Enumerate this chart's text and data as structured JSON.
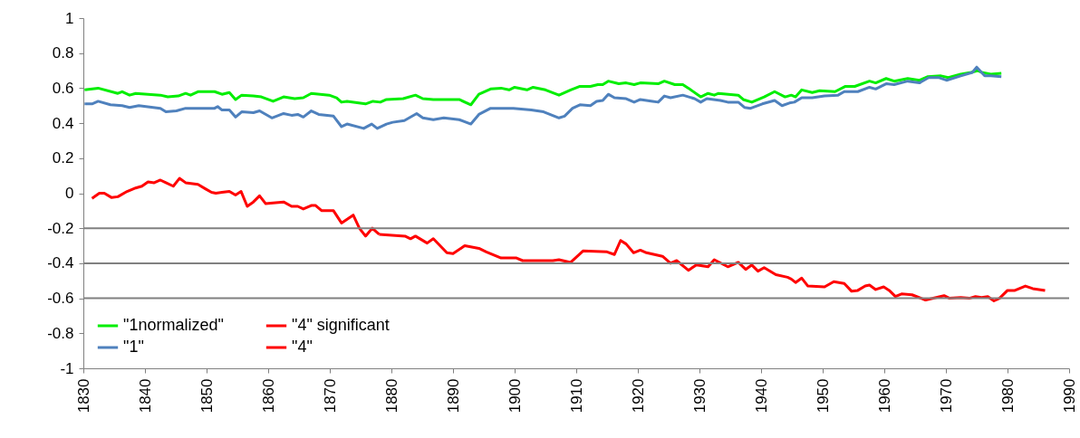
{
  "chart_data": {
    "type": "line",
    "xlim": [
      1830,
      1990
    ],
    "xticks": [
      1830,
      1840,
      1850,
      1860,
      1870,
      1880,
      1890,
      1900,
      1910,
      1920,
      1930,
      1940,
      1950,
      1960,
      1970,
      1980,
      1990
    ],
    "ylim": [
      -1,
      1
    ],
    "yticks": [
      -1,
      -0.8,
      -0.6,
      -0.4,
      -0.2,
      0,
      0.2,
      0.4,
      0.6,
      0.8,
      1
    ],
    "legend": "bottom left",
    "line_style": "solid",
    "marker": "none",
    "ref_lines": [
      {
        "axis": "y",
        "value": -0.2,
        "color": "#808080"
      },
      {
        "axis": "y",
        "value": -0.4,
        "color": "#808080"
      },
      {
        "axis": "y",
        "value": -0.6,
        "color": "#808080"
      }
    ],
    "series": [
      {
        "name": "\"1normalized\"",
        "color": "#00ee00",
        "x": [
          1830.2,
          1832.4,
          1835.6,
          1836.3,
          1837.5,
          1838.5,
          1842.5,
          1843.7,
          1845.4,
          1846.6,
          1847.4,
          1848.6,
          1851.3,
          1852.5,
          1853.7,
          1854.7,
          1855.7,
          1857.6,
          1858.9,
          1860.8,
          1862.5,
          1864.3,
          1865.7,
          1867,
          1869.9,
          1871.1,
          1871.9,
          1872.8,
          1875.8,
          1877,
          1878.2,
          1879.2,
          1881.9,
          1883.9,
          1885.1,
          1886.8,
          1891,
          1892.9,
          1894.2,
          1896.1,
          1897.8,
          1899.1,
          1900,
          1902,
          1903,
          1905,
          1907.2,
          1909.1,
          1910.6,
          1912.3,
          1913.5,
          1914.3,
          1915.2,
          1916.9,
          1918.1,
          1919.4,
          1920.4,
          1923.3,
          1924.3,
          1926,
          1927.3,
          1928.2,
          1930.2,
          1931.4,
          1932.4,
          1933.1,
          1936.3,
          1937.1,
          1938.5,
          1940.5,
          1942.2,
          1943.9,
          1944.9,
          1945.6,
          1946.6,
          1948.3,
          1949.5,
          1952,
          1953.7,
          1955.2,
          1957.6,
          1958.6,
          1960.3,
          1961.6,
          1963.8,
          1965.7,
          1967,
          1969.2,
          1970.4,
          1972.4,
          1974.1,
          1975.2,
          1975.8,
          1977.3,
          1979
        ],
        "values": [
          0.59,
          0.6,
          0.57,
          0.58,
          0.56,
          0.57,
          0.56,
          0.55,
          0.555,
          0.57,
          0.56,
          0.58,
          0.58,
          0.565,
          0.575,
          0.535,
          0.56,
          0.555,
          0.55,
          0.525,
          0.55,
          0.54,
          0.545,
          0.57,
          0.56,
          0.545,
          0.52,
          0.525,
          0.51,
          0.525,
          0.52,
          0.535,
          0.54,
          0.56,
          0.54,
          0.535,
          0.535,
          0.505,
          0.565,
          0.595,
          0.6,
          0.59,
          0.605,
          0.59,
          0.605,
          0.59,
          0.56,
          0.59,
          0.61,
          0.61,
          0.62,
          0.62,
          0.64,
          0.625,
          0.63,
          0.62,
          0.63,
          0.625,
          0.64,
          0.62,
          0.62,
          0.6,
          0.55,
          0.57,
          0.56,
          0.57,
          0.56,
          0.535,
          0.52,
          0.55,
          0.58,
          0.55,
          0.56,
          0.55,
          0.59,
          0.575,
          0.585,
          0.58,
          0.61,
          0.61,
          0.64,
          0.63,
          0.655,
          0.64,
          0.655,
          0.645,
          0.665,
          0.67,
          0.66,
          0.68,
          0.69,
          0.7,
          0.69,
          0.68,
          0.685
        ]
      },
      {
        "name": "\"1\"",
        "color": "#4f81bd",
        "x": [
          1830.2,
          1831.4,
          1832.4,
          1834.4,
          1836.3,
          1837.5,
          1839,
          1842.5,
          1843.4,
          1845.1,
          1846.6,
          1851.3,
          1851.8,
          1852.5,
          1853.7,
          1854.7,
          1855.7,
          1857.6,
          1858.6,
          1860.6,
          1862.5,
          1863.8,
          1864.8,
          1865.7,
          1867,
          1868.2,
          1870.6,
          1871.9,
          1872.8,
          1875.5,
          1876.8,
          1877.7,
          1879.2,
          1880.2,
          1882.1,
          1884.1,
          1885.1,
          1886.8,
          1888.5,
          1891,
          1892.9,
          1894.2,
          1896.1,
          1899.8,
          1902.7,
          1904.7,
          1907.2,
          1908.1,
          1909.4,
          1910.6,
          1912.3,
          1913.3,
          1914.3,
          1915.2,
          1916.2,
          1918.1,
          1919.4,
          1920.4,
          1922.4,
          1923.3,
          1924.3,
          1925.3,
          1927.3,
          1929.2,
          1930.2,
          1931.2,
          1933.4,
          1934.6,
          1936.3,
          1937.3,
          1938.3,
          1940.2,
          1942.2,
          1943.4,
          1944.6,
          1945.4,
          1946.6,
          1948.3,
          1950.3,
          1952.5,
          1953.5,
          1955.7,
          1957.6,
          1958.6,
          1960.3,
          1961.6,
          1963.8,
          1965.7,
          1967.2,
          1968.9,
          1970.1,
          1972.4,
          1974.3,
          1975,
          1976.3,
          1977.3,
          1979
        ],
        "values": [
          0.51,
          0.51,
          0.525,
          0.505,
          0.5,
          0.49,
          0.5,
          0.485,
          0.465,
          0.47,
          0.485,
          0.485,
          0.495,
          0.475,
          0.475,
          0.435,
          0.465,
          0.46,
          0.47,
          0.43,
          0.455,
          0.445,
          0.45,
          0.435,
          0.47,
          0.45,
          0.44,
          0.38,
          0.395,
          0.37,
          0.395,
          0.37,
          0.395,
          0.405,
          0.415,
          0.455,
          0.43,
          0.42,
          0.43,
          0.42,
          0.395,
          0.45,
          0.485,
          0.485,
          0.475,
          0.465,
          0.43,
          0.44,
          0.485,
          0.505,
          0.5,
          0.525,
          0.53,
          0.565,
          0.545,
          0.54,
          0.52,
          0.535,
          0.525,
          0.52,
          0.555,
          0.545,
          0.56,
          0.54,
          0.52,
          0.54,
          0.53,
          0.52,
          0.52,
          0.49,
          0.485,
          0.51,
          0.53,
          0.5,
          0.515,
          0.52,
          0.545,
          0.545,
          0.555,
          0.56,
          0.58,
          0.58,
          0.605,
          0.595,
          0.625,
          0.62,
          0.64,
          0.63,
          0.66,
          0.66,
          0.645,
          0.67,
          0.69,
          0.72,
          0.67,
          0.67,
          0.665
        ]
      },
      {
        "name": "\"4\" significant",
        "color": "#ff0000",
        "x": [
          1878,
          1882.2,
          1883.1,
          1883.9,
          1885.8,
          1886.8,
          1889,
          1890,
          1891.9,
          1894.2,
          1895.4,
          1897.8,
          1900.3,
          1901.3,
          1906.2,
          1907.2,
          1909.1,
          1911.1,
          1915,
          1916.2,
          1917.2,
          1918.1,
          1919.3,
          1920.4,
          1921.4,
          1924,
          1925.3,
          1926.3,
          1928.2,
          1929.5,
          1931.4,
          1932.4,
          1934.6,
          1936.3,
          1937.5,
          1938.5,
          1939.5,
          1940.5,
          1942.4,
          1944.3,
          1944.9,
          1945.6,
          1946.6,
          1947.6,
          1950.3,
          1951.8,
          1953.5,
          1954.7,
          1955.7,
          1956.9,
          1957.6,
          1958.6,
          1959.9,
          1960.8,
          1961.8,
          1962.8,
          1964.5,
          1966.7,
          1969.7,
          1970.6,
          1972.4,
          1973.8,
          1974.8,
          1975.8,
          1976.8,
          1977.8,
          1978.7,
          1980,
          1981.2,
          1982.9,
          1984.1,
          1986.1
        ],
        "values": [
          -0.235,
          -0.245,
          -0.26,
          -0.245,
          -0.285,
          -0.26,
          -0.34,
          -0.345,
          -0.3,
          -0.315,
          -0.335,
          -0.37,
          -0.37,
          -0.385,
          -0.385,
          -0.38,
          -0.395,
          -0.33,
          -0.335,
          -0.35,
          -0.27,
          -0.29,
          -0.34,
          -0.325,
          -0.34,
          -0.36,
          -0.4,
          -0.385,
          -0.44,
          -0.41,
          -0.42,
          -0.38,
          -0.42,
          -0.395,
          -0.435,
          -0.41,
          -0.445,
          -0.425,
          -0.465,
          -0.48,
          -0.49,
          -0.51,
          -0.485,
          -0.53,
          -0.535,
          -0.505,
          -0.515,
          -0.56,
          -0.555,
          -0.53,
          -0.525,
          -0.55,
          -0.535,
          -0.555,
          -0.59,
          -0.575,
          -0.58,
          -0.61,
          -0.585,
          -0.6,
          -0.595,
          -0.6,
          -0.59,
          -0.595,
          -0.59,
          -0.615,
          -0.6,
          -0.555,
          -0.555,
          -0.53,
          -0.545,
          -0.555
        ]
      },
      {
        "name": "\"4\"",
        "color": "#ff0000",
        "x": [
          1831.4,
          1832.6,
          1833.4,
          1834.6,
          1835.6,
          1837.1,
          1838.5,
          1839.5,
          1840.5,
          1841.5,
          1842.5,
          1843.4,
          1844.6,
          1845.6,
          1846.6,
          1848.6,
          1849.8,
          1850.8,
          1851.5,
          1852.5,
          1853.7,
          1854.7,
          1855.6,
          1856.6,
          1857.6,
          1858.6,
          1859.6,
          1860.8,
          1862.5,
          1863.8,
          1864.8,
          1865.7,
          1867,
          1867.7,
          1868.7,
          1870.6,
          1871.9,
          1873.8,
          1874.8,
          1875.8,
          1876.9,
          1878
        ],
        "values": [
          -0.03,
          0.0,
          0.0,
          -0.025,
          -0.02,
          0.01,
          0.03,
          0.04,
          0.065,
          0.06,
          0.075,
          0.06,
          0.04,
          0.085,
          0.06,
          0.05,
          0.025,
          0.005,
          0.0,
          0.005,
          0.01,
          -0.01,
          0.01,
          -0.075,
          -0.05,
          -0.015,
          -0.06,
          -0.055,
          -0.05,
          -0.075,
          -0.075,
          -0.09,
          -0.07,
          -0.07,
          -0.1,
          -0.1,
          -0.17,
          -0.125,
          -0.2,
          -0.245,
          -0.2,
          -0.235
        ]
      }
    ]
  }
}
